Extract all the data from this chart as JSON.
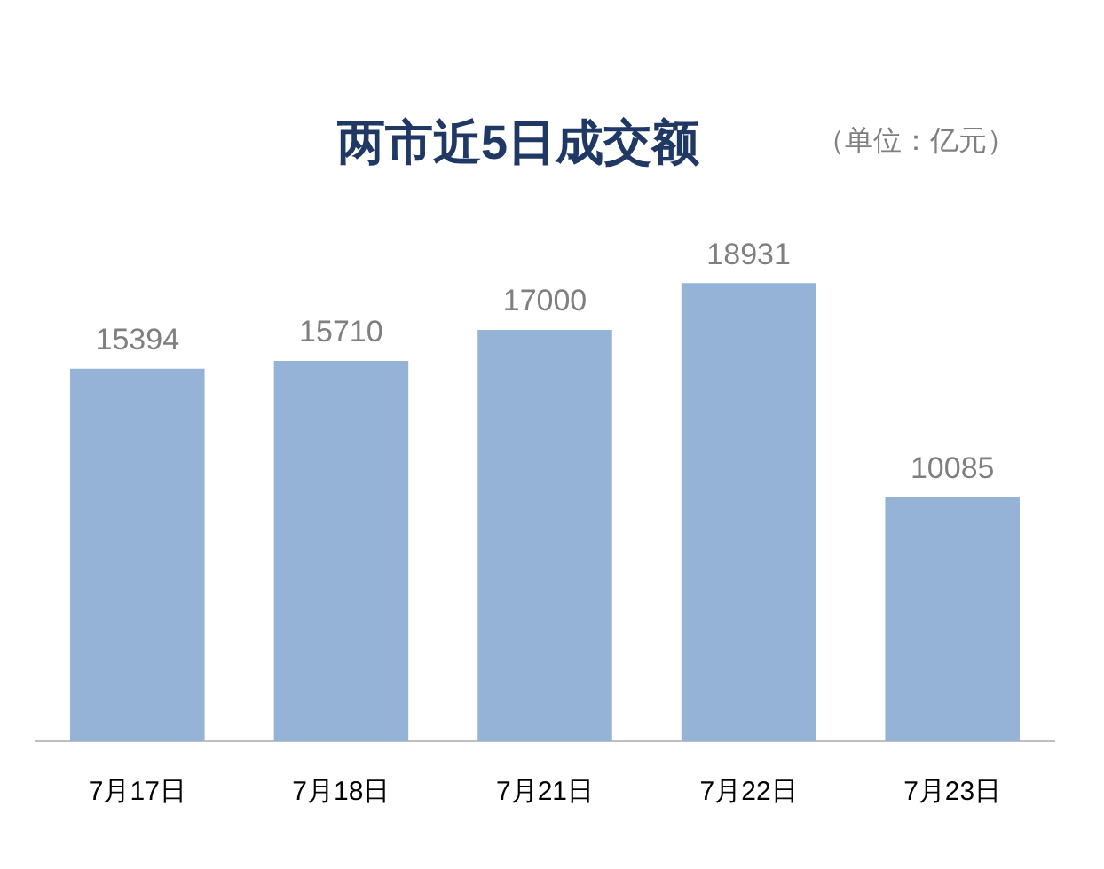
{
  "chart_data": {
    "type": "bar",
    "title": "两市近5日成交额",
    "annotations": [
      "（单位：亿元）"
    ],
    "categories": [
      "7月17日",
      "7月18日",
      "7月21日",
      "7月22日",
      "7月23日"
    ],
    "values": [
      15394,
      15710,
      17000,
      18931,
      10085
    ],
    "color": "#95b3d7",
    "data_labels": true,
    "grid": false,
    "legend": false
  }
}
